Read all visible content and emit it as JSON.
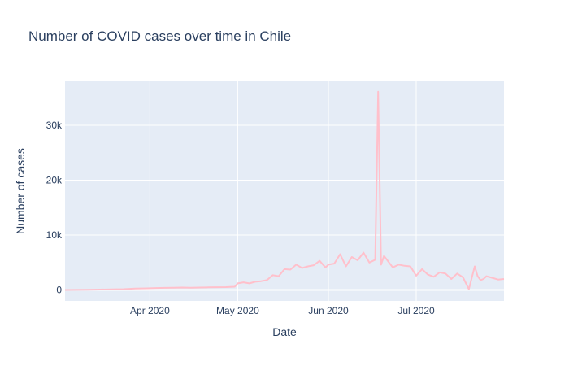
{
  "chart_data": {
    "type": "line",
    "title": "Number of COVID cases over time in Chile",
    "xlabel": "Date",
    "ylabel": "Number of cases",
    "x_range": [
      "2020-03-03",
      "2020-07-31"
    ],
    "ylim": [
      -2000,
      38000
    ],
    "y_ticks": [
      {
        "value": 0,
        "label": "0"
      },
      {
        "value": 10000,
        "label": "10k"
      },
      {
        "value": 20000,
        "label": "20k"
      },
      {
        "value": 30000,
        "label": "30k"
      }
    ],
    "x_ticks": [
      {
        "value": "2020-04-01",
        "label": "Apr 2020"
      },
      {
        "value": "2020-05-01",
        "label": "May 2020"
      },
      {
        "value": "2020-06-01",
        "label": "Jun 2020"
      },
      {
        "value": "2020-07-01",
        "label": "Jul 2020"
      }
    ],
    "grid": true,
    "colors": {
      "line": "#ffc0cb",
      "plot_bg": "#e5ecf6",
      "grid": "#ffffff",
      "text": "#2a3f5f"
    },
    "series": [
      {
        "x": [
          "2020-03-03",
          "2020-03-07",
          "2020-03-11",
          "2020-03-15",
          "2020-03-19",
          "2020-03-23",
          "2020-03-27",
          "2020-03-31",
          "2020-04-03",
          "2020-04-06",
          "2020-04-09",
          "2020-04-12",
          "2020-04-15",
          "2020-04-18",
          "2020-04-21",
          "2020-04-24",
          "2020-04-27",
          "2020-04-30",
          "2020-05-01",
          "2020-05-03",
          "2020-05-05",
          "2020-05-07",
          "2020-05-09",
          "2020-05-11",
          "2020-05-13",
          "2020-05-15",
          "2020-05-17",
          "2020-05-19",
          "2020-05-21",
          "2020-05-23",
          "2020-05-25",
          "2020-05-27",
          "2020-05-29",
          "2020-05-31",
          "2020-06-01",
          "2020-06-03",
          "2020-06-05",
          "2020-06-07",
          "2020-06-09",
          "2020-06-11",
          "2020-06-13",
          "2020-06-15",
          "2020-06-17",
          "2020-06-18",
          "2020-06-19",
          "2020-06-20",
          "2020-06-21",
          "2020-06-23",
          "2020-06-25",
          "2020-06-27",
          "2020-06-29",
          "2020-07-01",
          "2020-07-03",
          "2020-07-05",
          "2020-07-07",
          "2020-07-09",
          "2020-07-11",
          "2020-07-13",
          "2020-07-15",
          "2020-07-17",
          "2020-07-19",
          "2020-07-21",
          "2020-07-22",
          "2020-07-23",
          "2020-07-24",
          "2020-07-25",
          "2020-07-27",
          "2020-07-29",
          "2020-07-31"
        ],
        "y": [
          0,
          20,
          40,
          80,
          100,
          150,
          250,
          300,
          350,
          380,
          420,
          450,
          400,
          450,
          480,
          500,
          520,
          600,
          1200,
          1400,
          1200,
          1500,
          1600,
          1800,
          2700,
          2500,
          3800,
          3700,
          4600,
          4000,
          4300,
          4500,
          5300,
          4100,
          4600,
          4800,
          6500,
          4300,
          6000,
          5400,
          6800,
          5000,
          5500,
          36100,
          4600,
          6200,
          5500,
          4100,
          4600,
          4400,
          4300,
          2600,
          3800,
          2800,
          2400,
          3200,
          3000,
          2000,
          3000,
          2300,
          150,
          4300,
          2500,
          1800,
          2000,
          2500,
          2200,
          1900,
          2000
        ]
      }
    ]
  }
}
